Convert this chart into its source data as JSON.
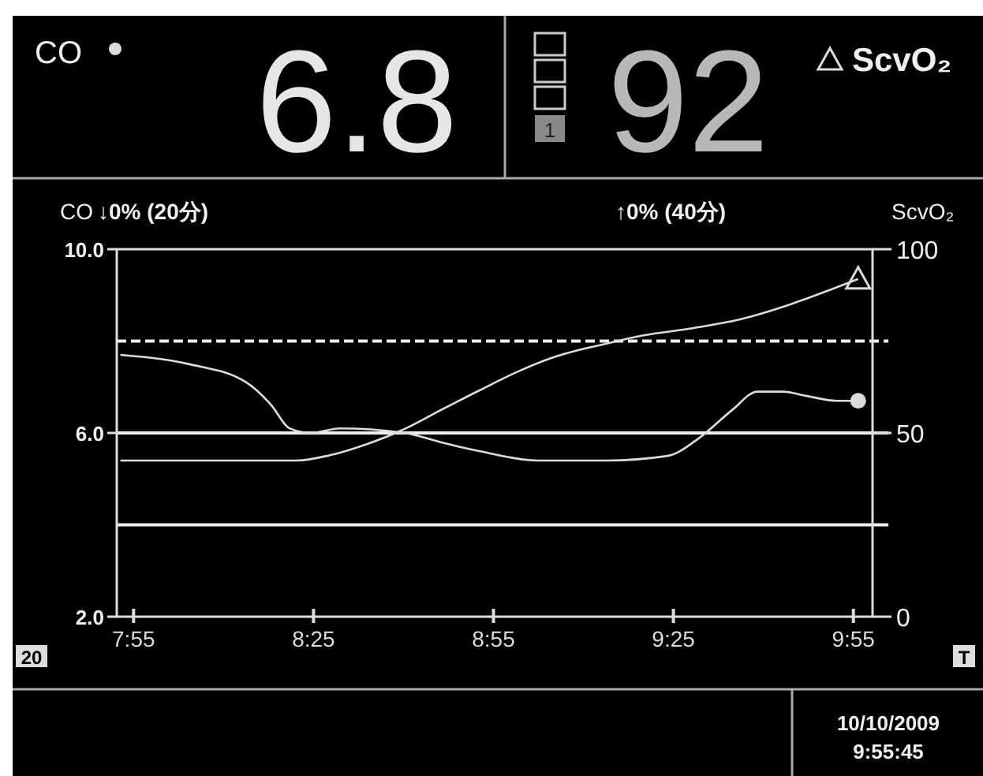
{
  "chart_data": {
    "type": "line",
    "ylabel": "CO",
    "y2label": "ScvO₂",
    "annotations": [
      "6.8",
      "92",
      "1",
      "↓0% (20分)",
      "↑0% (40分)",
      "20",
      "T",
      "10/10/2009",
      "9:55:45",
      "CO",
      "ScvO₂"
    ],
    "series": [
      {
        "color": "#dcdcdc",
        "x": [
          7.88,
          8.07,
          8.23,
          8.3,
          8.35,
          8.41,
          8.49,
          8.67,
          8.77,
          8.88,
          9.04,
          9.23,
          9.4,
          9.49,
          9.58,
          9.65,
          9.72,
          9.79,
          9.87,
          9.93
        ],
        "values": [
          7.7,
          7.5,
          7.1,
          6.6,
          6.1,
          6.0,
          6.1,
          6.0,
          5.8,
          5.6,
          5.4,
          5.4,
          5.5,
          5.9,
          6.5,
          6.9,
          6.9,
          6.8,
          6.7,
          6.7
        ]
      },
      {
        "color": "#dcdcdc",
        "axis": "y2",
        "x": [
          7.88,
          8.37,
          8.46,
          8.56,
          8.67,
          8.77,
          8.88,
          8.98,
          9.09,
          9.23,
          9.33,
          9.47,
          9.61,
          9.73,
          9.84,
          9.93
        ],
        "values": [
          42.5,
          42.5,
          43.9,
          46.8,
          51.1,
          56.2,
          61.7,
          66.5,
          70.8,
          74.3,
          76.5,
          78.5,
          81.1,
          84.6,
          88.5,
          91.9
        ]
      }
    ],
    "xlim": [
      7.87,
      9.97
    ],
    "xticks": [
      {
        "value": 7.9167,
        "label": "7:55"
      },
      {
        "value": 8.4167,
        "label": "8:25"
      },
      {
        "value": 8.9167,
        "label": "8:55"
      },
      {
        "value": 9.4167,
        "label": "9:25"
      },
      {
        "value": 9.9167,
        "label": "9:55"
      }
    ],
    "ylim": [
      2,
      10
    ],
    "yticks": [
      {
        "value": 2,
        "label": "2.0"
      },
      {
        "value": 6,
        "label": "6.0"
      },
      {
        "value": 10,
        "label": "10.0"
      }
    ],
    "y2lim": [
      0,
      100
    ],
    "y2ticks": [
      0,
      50,
      100
    ],
    "ref_lines": [
      {
        "axis": "y",
        "value": 8,
        "line_style": "dashed"
      },
      {
        "axis": "y",
        "value": 6
      },
      {
        "axis": "y",
        "value": 4
      }
    ],
    "grid": false
  }
}
